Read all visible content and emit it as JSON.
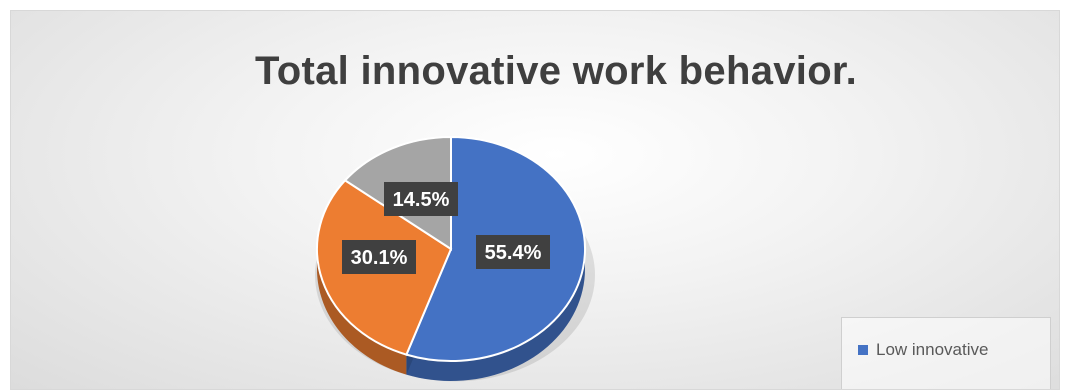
{
  "chart_data": {
    "type": "pie",
    "title": "Total innovative work behavior.",
    "slices": [
      {
        "name": "Low innovative",
        "value": 55.4,
        "label": "55.4%",
        "color": "#4472c4"
      },
      {
        "name": "",
        "value": 30.1,
        "label": "30.1%",
        "color": "#ed7d31"
      },
      {
        "name": "",
        "value": 14.5,
        "label": "14.5%",
        "color": "#a5a5a5"
      }
    ],
    "legend": {
      "position": "bottom-right",
      "entries": [
        {
          "label": "Low innovative",
          "color": "#4472c4"
        }
      ]
    },
    "style": "3d"
  }
}
